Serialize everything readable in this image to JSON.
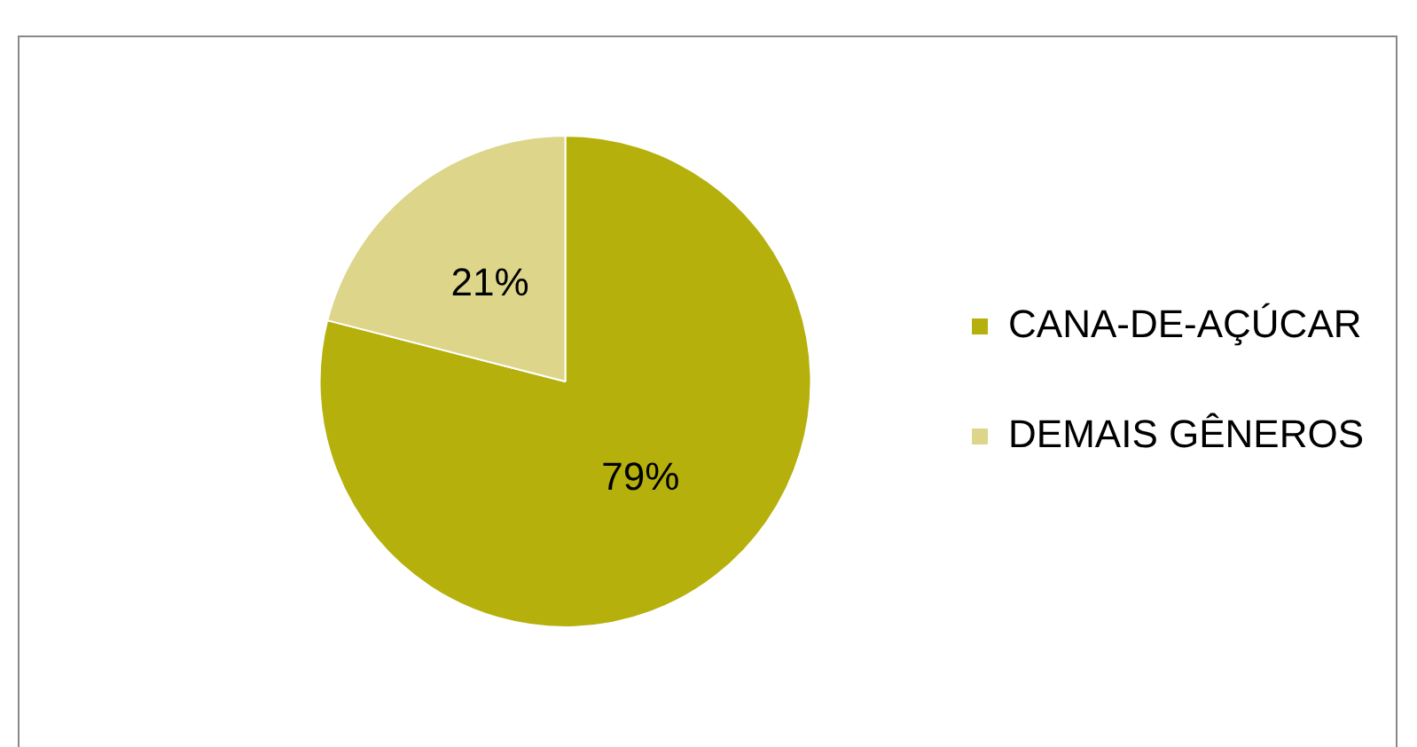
{
  "chart_data": {
    "type": "pie",
    "categories": [
      "CANA-DE-AÇÚCAR",
      "DEMAIS GÊNEROS"
    ],
    "values": [
      79,
      21
    ],
    "colors": [
      "#b5b00c",
      "#dcd58a"
    ],
    "value_labels": [
      "79%",
      "21%"
    ],
    "legend": "right"
  }
}
